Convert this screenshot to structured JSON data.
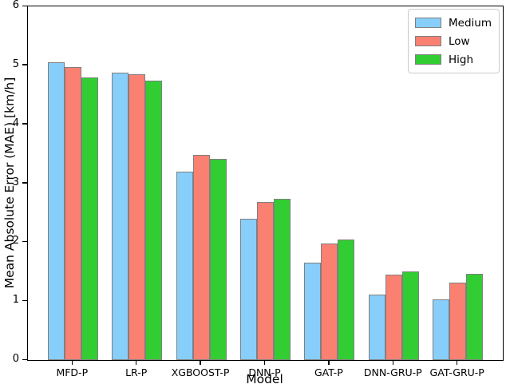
{
  "chart_data": {
    "type": "bar",
    "title": "",
    "xlabel": "Model",
    "ylabel": "Mean Absolute Error (MAE) [km/h]",
    "categories": [
      "MFD-P",
      "LR-P",
      "XGBOOST-P",
      "DNN-P",
      "GAT-P",
      "DNN-GRU-P",
      "GAT-GRU-P"
    ],
    "series": [
      {
        "name": "Medium",
        "color": "#87CEFA",
        "values": [
          5.05,
          4.88,
          3.19,
          2.4,
          1.65,
          1.11,
          1.03
        ]
      },
      {
        "name": "Low",
        "color": "#FA8072",
        "values": [
          4.97,
          4.85,
          3.48,
          2.68,
          1.98,
          1.45,
          1.31
        ]
      },
      {
        "name": "High",
        "color": "#32CD32",
        "values": [
          4.8,
          4.74,
          3.41,
          2.74,
          2.05,
          1.5,
          1.46
        ]
      }
    ],
    "ylim": [
      0,
      6
    ],
    "yticks": [
      0,
      1,
      2,
      3,
      4,
      5,
      6
    ],
    "bar_edge_color": "#808080",
    "legend_position": "upper right",
    "legend_border_color": "#cccccc",
    "grid": false,
    "background_color": "#ffffff",
    "spine_color": "#000000"
  }
}
